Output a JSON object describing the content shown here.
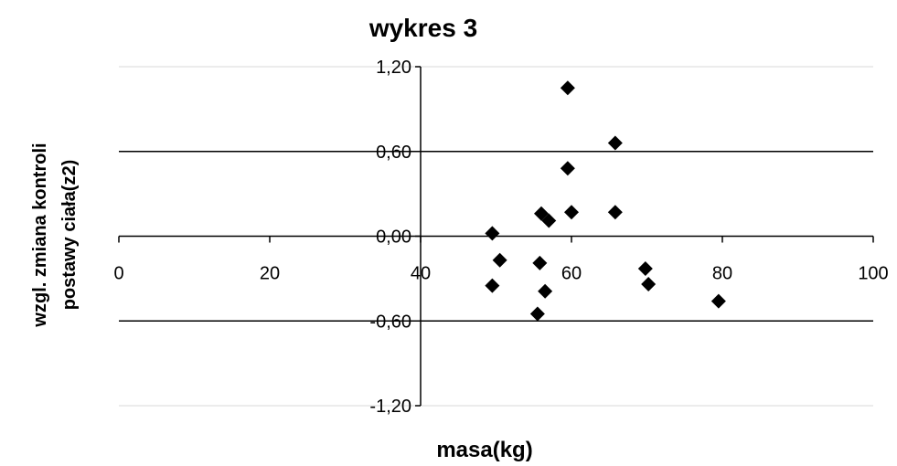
{
  "chart_data": {
    "type": "scatter",
    "title": "wykres 3",
    "xlabel": "masa(kg)",
    "ylabel_lines": [
      "wzgl. zmiana kontroli",
      "postawy ciała(z2)"
    ],
    "xlim": [
      0,
      100
    ],
    "ylim": [
      -1.2,
      1.2
    ],
    "x_ticks": [
      0,
      20,
      40,
      60,
      80,
      100
    ],
    "x_tick_labels": [
      "0",
      "20",
      "40",
      "60",
      "80",
      "100"
    ],
    "y_ticks": [
      1.2,
      0.6,
      0.0,
      -0.6,
      -1.2
    ],
    "y_tick_labels": [
      "1,20",
      "0,60",
      "0,00",
      "-0,60",
      "-1,20"
    ],
    "y_gridlines": [
      0.6,
      -0.6
    ],
    "x_axis_crosses_at": 0,
    "y_axis_crosses_at": 40,
    "marker": "diamond",
    "marker_color": "#000000",
    "series": [
      {
        "x": [
          59.5,
          65.8,
          59.5,
          56,
          57,
          60,
          65.8,
          49.5,
          50.5,
          55.8,
          69.8,
          49.5,
          56.5,
          70.2,
          79.5,
          55.5
        ],
        "y": [
          1.05,
          0.66,
          0.48,
          0.16,
          0.11,
          0.17,
          0.17,
          0.02,
          -0.17,
          -0.19,
          -0.23,
          -0.35,
          -0.39,
          -0.34,
          -0.46,
          -0.55
        ]
      }
    ]
  }
}
